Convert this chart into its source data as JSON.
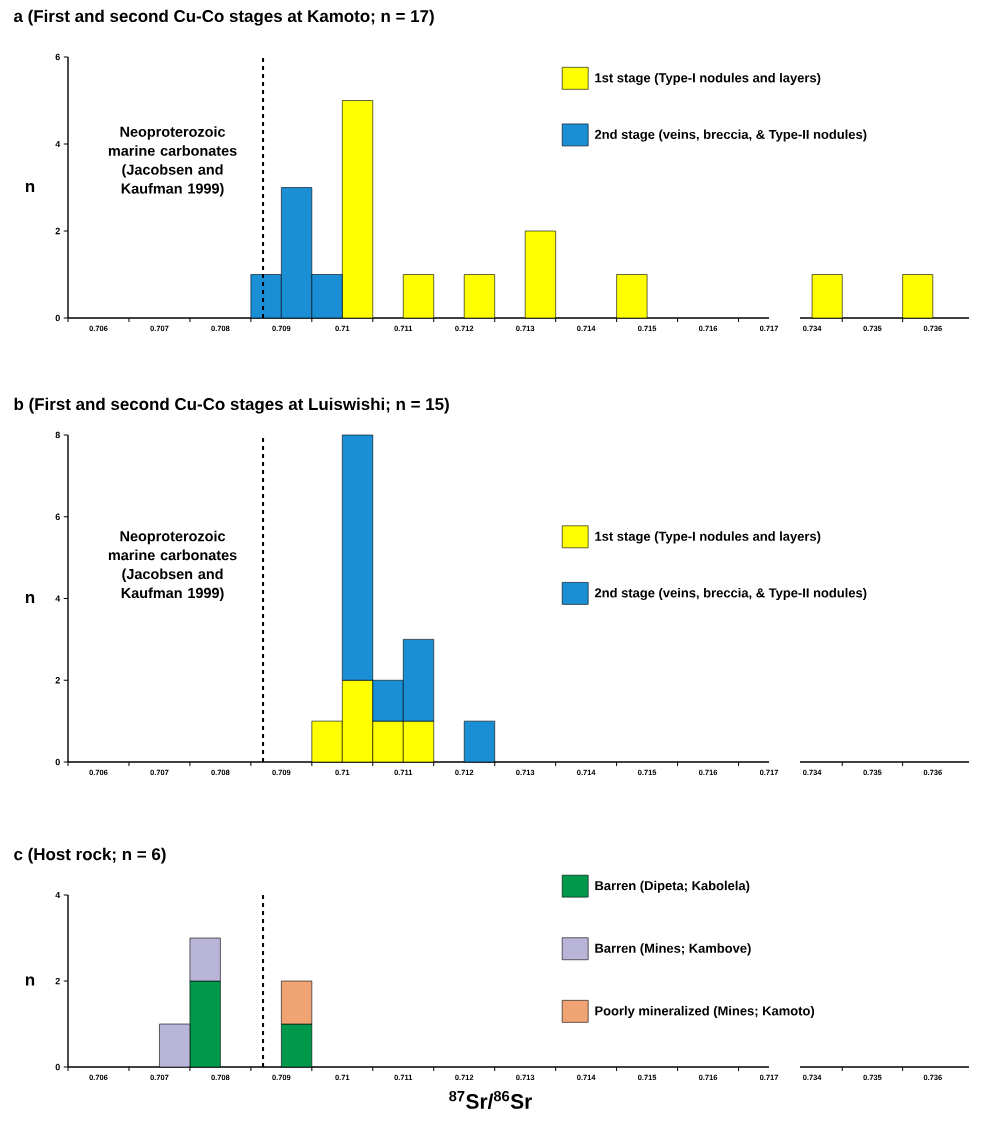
{
  "chart_data": [
    {
      "type": "bar",
      "title": "a (First and second Cu-Co stages at Kamoto; n = 17)",
      "ylabel": "n",
      "x": [
        0.70875,
        0.70925,
        0.70975,
        0.71025,
        0.71075,
        0.71125,
        0.71175,
        0.71225,
        0.71275,
        0.71325,
        0.71375,
        0.71425,
        0.71475
      ],
      "stacked": true,
      "series": [
        {
          "name": "1st stage (Type-I nodules and layers)",
          "color": "#ffff00",
          "values": [
            0,
            0,
            0,
            5,
            0,
            1,
            0,
            1,
            0,
            2,
            0,
            0,
            1
          ]
        },
        {
          "name": "2nd stage (veins, breccia, & Type-II nodules)",
          "color": "#1a8fd6",
          "values": [
            1,
            3,
            1,
            0,
            0,
            0,
            0,
            0,
            0,
            0,
            0,
            0,
            0
          ]
        }
      ],
      "xlim": [
        0.7055,
        0.717
      ],
      "ylim": [
        0,
        6
      ],
      "yticks": [
        0,
        2,
        4,
        6
      ],
      "xticks": [
        {
          "value": 0.7055,
          "label": null
        },
        0.706,
        {
          "value": 0.7065,
          "label": null
        },
        0.707,
        {
          "value": 0.7075,
          "label": null
        },
        0.708,
        {
          "value": 0.7085,
          "label": null
        },
        0.709,
        {
          "value": 0.7095,
          "label": null
        },
        0.71,
        {
          "value": 0.7105,
          "label": null
        },
        0.711,
        {
          "value": 0.7115,
          "label": null
        },
        0.712,
        {
          "value": 0.7125,
          "label": null
        },
        0.713,
        {
          "value": 0.7135,
          "label": null
        },
        0.714,
        {
          "value": 0.7145,
          "label": null
        },
        0.715,
        {
          "value": 0.7155,
          "label": null
        },
        0.716,
        {
          "value": 0.7165,
          "label": null
        },
        0.717
      ],
      "ref_lines": [
        {
          "axis": "x",
          "value": 0.7087,
          "label": "Neoproterozoic marine carbonates (Jacobsen and Kaufman 1999)",
          "line_style": "dashed"
        }
      ],
      "legend": "top right"
    },
    {
      "type": "bar",
      "x": [
        0.73425,
        0.73475,
        0.73525,
        0.73575
      ],
      "series": [
        {
          "color": "#ffff00",
          "values": [
            1,
            0,
            0,
            1
          ]
        }
      ],
      "xlim": [
        0.7338,
        0.7366
      ],
      "ylim": [
        0,
        6
      ],
      "tick_labels": "x",
      "xticks": [
        0.734,
        {
          "value": 0.7345,
          "label": null
        },
        0.735,
        {
          "value": 0.7355,
          "label": null
        },
        0.736
      ]
    },
    {
      "type": "bar",
      "title": "b (First and second Cu-Co stages at Luiswishi; n = 15)",
      "ylabel": "n",
      "x": [
        0.70975,
        0.71025,
        0.71075,
        0.71125,
        0.71175,
        0.71225
      ],
      "stacked": true,
      "series": [
        {
          "name": "1st stage (Type-I nodules and layers)",
          "color": "#ffff00",
          "values": [
            1,
            2,
            1,
            1,
            0,
            0
          ]
        },
        {
          "name": "2nd stage (veins, breccia, & Type-II nodules)",
          "color": "#1a8fd6",
          "values": [
            0,
            6,
            1,
            2,
            0,
            1
          ]
        }
      ],
      "xlim": [
        0.7055,
        0.717
      ],
      "ylim": [
        0,
        8
      ],
      "yticks": [
        0,
        2,
        4,
        6,
        8
      ],
      "xticks": [
        {
          "value": 0.7055,
          "label": null
        },
        0.706,
        {
          "value": 0.7065,
          "label": null
        },
        0.707,
        {
          "value": 0.7075,
          "label": null
        },
        0.708,
        {
          "value": 0.7085,
          "label": null
        },
        0.709,
        {
          "value": 0.7095,
          "label": null
        },
        0.71,
        {
          "value": 0.7105,
          "label": null
        },
        0.711,
        {
          "value": 0.7115,
          "label": null
        },
        0.712,
        {
          "value": 0.7125,
          "label": null
        },
        0.713,
        {
          "value": 0.7135,
          "label": null
        },
        0.714,
        {
          "value": 0.7145,
          "label": null
        },
        0.715,
        {
          "value": 0.7155,
          "label": null
        },
        0.716,
        {
          "value": 0.7165,
          "label": null
        },
        0.717
      ],
      "ref_lines": [
        {
          "axis": "x",
          "value": 0.7087,
          "label": "Neoproterozoic marine carbonates (Jacobsen and Kaufman 1999)",
          "line_style": "dashed"
        }
      ],
      "legend": "right"
    },
    {
      "type": "bar",
      "xlim": [
        0.7338,
        0.7366
      ],
      "ylim": [
        0,
        8
      ],
      "tick_labels": "x",
      "xticks": [
        0.734,
        {
          "value": 0.7345,
          "label": null
        },
        0.735,
        {
          "value": 0.7355,
          "label": null
        },
        0.736
      ]
    },
    {
      "type": "bar",
      "title": "c (Host rock; n = 6)",
      "ylabel": "n",
      "xlabel": "$^{87}$Sr/$^{86}$Sr",
      "x": [
        0.70725,
        0.70775,
        0.70825,
        0.70875,
        0.70925
      ],
      "stacked": true,
      "series": [
        {
          "name": "Barren (Dipeta; Kabolela)",
          "color": "#00994c",
          "values": [
            0,
            2,
            0,
            0,
            1
          ]
        },
        {
          "name": "Barren (Mines; Kambove)",
          "color": "#b9b5d9",
          "values": [
            1,
            1,
            0,
            0,
            0
          ]
        },
        {
          "name": "Poorly mineralized (Mines; Kamoto)",
          "color": "#f0a474",
          "values": [
            0,
            0,
            0,
            0,
            1
          ]
        }
      ],
      "xlim": [
        0.7055,
        0.717
      ],
      "ylim": [
        0,
        4
      ],
      "yticks": [
        0,
        2,
        4
      ],
      "xticks": [
        {
          "value": 0.7055,
          "label": null
        },
        0.706,
        {
          "value": 0.7065,
          "label": null
        },
        0.707,
        {
          "value": 0.7075,
          "label": null
        },
        0.708,
        {
          "value": 0.7085,
          "label": null
        },
        0.709,
        {
          "value": 0.7095,
          "label": null
        },
        0.71,
        {
          "value": 0.7105,
          "label": null
        },
        0.711,
        {
          "value": 0.7115,
          "label": null
        },
        0.712,
        {
          "value": 0.7125,
          "label": null
        },
        0.713,
        {
          "value": 0.7135,
          "label": null
        },
        0.714,
        {
          "value": 0.7145,
          "label": null
        },
        0.715,
        {
          "value": 0.7155,
          "label": null
        },
        0.716,
        {
          "value": 0.7165,
          "label": null
        },
        0.717
      ],
      "ref_lines": [
        {
          "axis": "x",
          "value": 0.7087,
          "line_style": "dashed"
        }
      ],
      "legend": "top right"
    },
    {
      "type": "bar",
      "xlim": [
        0.7338,
        0.7366
      ],
      "ylim": [
        0,
        4
      ],
      "tick_labels": "x",
      "xticks": [
        0.734,
        {
          "value": 0.7345,
          "label": null
        },
        0.735,
        {
          "value": 0.7355,
          "label": null
        },
        0.736
      ]
    }
  ]
}
